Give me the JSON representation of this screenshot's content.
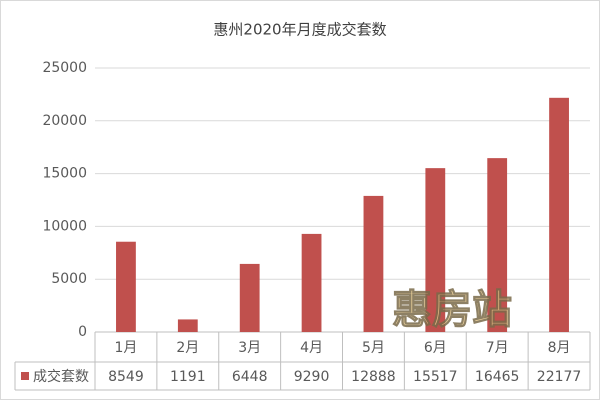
{
  "chart_data": {
    "type": "bar",
    "title": "惠州2020年月度成交套数",
    "categories": [
      "1月",
      "2月",
      "3月",
      "4月",
      "5月",
      "6月",
      "7月",
      "8月"
    ],
    "series": [
      {
        "name": "成交套数",
        "color": "#c0504d",
        "values": [
          8549,
          1191,
          6448,
          9290,
          12888,
          15517,
          16465,
          22177
        ]
      }
    ],
    "ylim": [
      0,
      25000
    ],
    "yticks": [
      0,
      5000,
      10000,
      15000,
      20000,
      25000
    ],
    "grid": true,
    "watermark": "惠房站"
  }
}
